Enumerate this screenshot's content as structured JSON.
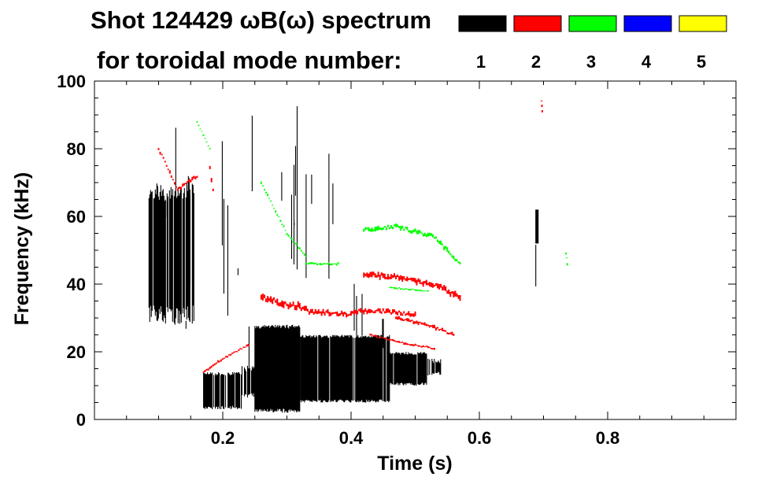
{
  "chart_data": {
    "type": "spectrogram",
    "title_line1": "Shot 124429 ωB(ω) spectrum",
    "title_line2": "for toroidal mode number:",
    "xlabel": "Time (s)",
    "ylabel": "Frequency (kHz)",
    "xlim": [
      0.0,
      1.0
    ],
    "ylim": [
      0,
      100
    ],
    "x_ticks": [
      0.2,
      0.4,
      0.6,
      0.8
    ],
    "x_tick_labels": [
      "0.2",
      "0.4",
      "0.6",
      "0.8"
    ],
    "y_ticks": [
      0,
      20,
      40,
      60,
      80,
      100
    ],
    "y_tick_labels": [
      "0",
      "20",
      "40",
      "60",
      "80",
      "100"
    ],
    "legend": [
      {
        "label": "1",
        "color": "#000000"
      },
      {
        "label": "2",
        "color": "#ff0000"
      },
      {
        "label": "3",
        "color": "#00ff00"
      },
      {
        "label": "4",
        "color": "#0000ff"
      },
      {
        "label": "5",
        "color": "#ffff00"
      }
    ],
    "regions": [
      {
        "mode": 1,
        "t": [
          0.085,
          0.155
        ],
        "f": [
          28,
          70
        ],
        "density": 0.85
      },
      {
        "mode": 1,
        "t": [
          0.09,
          0.16
        ],
        "f": [
          10,
          95
        ],
        "density": 0.12
      },
      {
        "mode": 1,
        "t": [
          0.16,
          0.26
        ],
        "f": [
          5,
          90
        ],
        "density": 0.07
      },
      {
        "mode": 1,
        "t": [
          0.17,
          0.23
        ],
        "f": [
          3,
          14
        ],
        "density": 0.9
      },
      {
        "mode": 1,
        "t": [
          0.23,
          0.26
        ],
        "f": [
          6,
          16
        ],
        "density": 0.8
      },
      {
        "mode": 1,
        "t": [
          0.25,
          0.32
        ],
        "f": [
          2,
          28
        ],
        "density": 0.95
      },
      {
        "mode": 1,
        "t": [
          0.32,
          0.46
        ],
        "f": [
          5,
          25
        ],
        "density": 0.95
      },
      {
        "mode": 1,
        "t": [
          0.46,
          0.52
        ],
        "f": [
          10,
          20
        ],
        "density": 0.9
      },
      {
        "mode": 1,
        "t": [
          0.52,
          0.54
        ],
        "f": [
          13,
          18
        ],
        "density": 0.7
      },
      {
        "mode": 1,
        "t": [
          0.26,
          0.38
        ],
        "f": [
          30,
          80
        ],
        "density": 0.05
      },
      {
        "mode": 1,
        "t": [
          0.3,
          0.32
        ],
        "f": [
          20,
          98
        ],
        "density": 0.25
      },
      {
        "mode": 1,
        "t": [
          0.4,
          0.5
        ],
        "f": [
          20,
          45
        ],
        "density": 0.05
      },
      {
        "mode": 1,
        "t": [
          0.688,
          0.692
        ],
        "f": [
          52,
          62
        ],
        "density": 1.0
      },
      {
        "mode": 1,
        "t": [
          0.688,
          0.692
        ],
        "f": [
          20,
          70
        ],
        "density": 0.25
      }
    ],
    "curves": [
      {
        "mode": 2,
        "t": [
          0.1,
          0.13,
          0.16
        ],
        "f": [
          80,
          68,
          72
        ],
        "width": 3
      },
      {
        "mode": 2,
        "t": [
          0.17,
          0.2,
          0.24
        ],
        "f": [
          14,
          18,
          22
        ],
        "width": 2
      },
      {
        "mode": 2,
        "t": [
          0.18,
          0.185
        ],
        "f": [
          74,
          68
        ],
        "width": 4
      },
      {
        "mode": 2,
        "t": [
          0.26,
          0.3,
          0.33
        ],
        "f": [
          36,
          34,
          33
        ],
        "width": 6
      },
      {
        "mode": 2,
        "t": [
          0.33,
          0.4
        ],
        "f": [
          32,
          31
        ],
        "width": 4
      },
      {
        "mode": 2,
        "t": [
          0.4,
          0.45,
          0.5
        ],
        "f": [
          32,
          32,
          31
        ],
        "width": 4
      },
      {
        "mode": 2,
        "t": [
          0.42,
          0.47,
          0.53,
          0.57
        ],
        "f": [
          43,
          42,
          40,
          36
        ],
        "width": 5
      },
      {
        "mode": 2,
        "t": [
          0.47,
          0.52,
          0.56
        ],
        "f": [
          30,
          28,
          25
        ],
        "width": 3
      },
      {
        "mode": 2,
        "t": [
          0.43,
          0.47,
          0.53
        ],
        "f": [
          25,
          23,
          21
        ],
        "width": 2
      },
      {
        "mode": 2,
        "t": [
          0.697,
          0.698
        ],
        "f": [
          94,
          91
        ],
        "width": 2
      },
      {
        "mode": 3,
        "t": [
          0.16,
          0.18
        ],
        "f": [
          88,
          80
        ],
        "width": 1.5
      },
      {
        "mode": 3,
        "t": [
          0.26,
          0.3,
          0.33
        ],
        "f": [
          70,
          55,
          48
        ],
        "width": 2
      },
      {
        "mode": 3,
        "t": [
          0.33,
          0.38
        ],
        "f": [
          46,
          46
        ],
        "width": 2
      },
      {
        "mode": 3,
        "t": [
          0.42,
          0.47,
          0.53,
          0.57
        ],
        "f": [
          56,
          57,
          54,
          46
        ],
        "width": 4
      },
      {
        "mode": 3,
        "t": [
          0.46,
          0.52
        ],
        "f": [
          39,
          38
        ],
        "width": 1.5
      },
      {
        "mode": 3,
        "t": [
          0.735,
          0.737
        ],
        "f": [
          49,
          46
        ],
        "width": 2
      }
    ]
  }
}
